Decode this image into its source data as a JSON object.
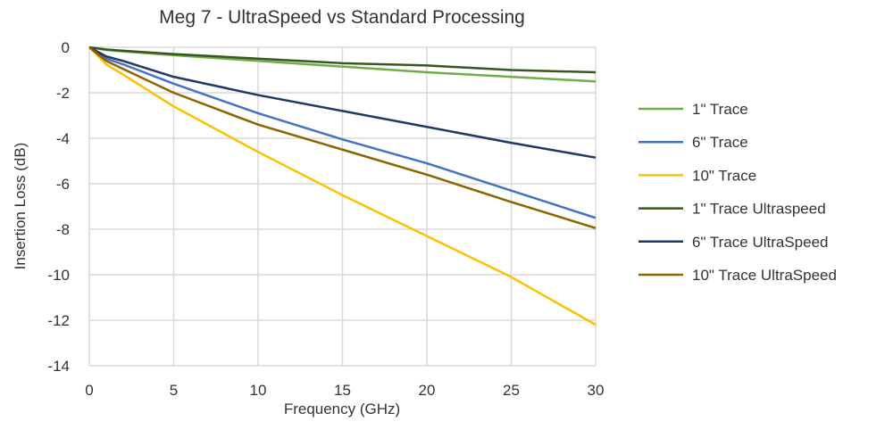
{
  "chart_data": {
    "type": "line",
    "title": "Meg 7 - UltraSpeed vs Standard Processing",
    "xlabel": "Frequency (GHz)",
    "ylabel": "Insertion Loss (dB)",
    "xlim": [
      0,
      30
    ],
    "ylim": [
      -14,
      0
    ],
    "xticks": [
      0,
      5,
      10,
      15,
      20,
      25,
      30
    ],
    "yticks": [
      0,
      -2,
      -4,
      -6,
      -8,
      -10,
      -12,
      -14
    ],
    "grid": true,
    "legend": "right",
    "x": [
      0,
      1,
      2,
      5,
      10,
      15,
      20,
      25,
      30
    ],
    "series": [
      {
        "name": "1\" Trace",
        "color": "#70AD47",
        "values": [
          0,
          -0.12,
          -0.18,
          -0.35,
          -0.6,
          -0.85,
          -1.1,
          -1.3,
          -1.5
        ]
      },
      {
        "name": "6\" Trace",
        "color": "#4472C4",
        "values": [
          0,
          -0.5,
          -0.75,
          -1.6,
          -2.9,
          -4.05,
          -5.1,
          -6.3,
          -7.5
        ]
      },
      {
        "name": "10\" Trace",
        "color": "#FFC000",
        "values": [
          0,
          -0.75,
          -1.2,
          -2.6,
          -4.6,
          -6.5,
          -8.3,
          -10.1,
          -12.2
        ]
      },
      {
        "name": "1\" Trace Ultraspeed",
        "color": "#375623",
        "values": [
          0,
          -0.1,
          -0.15,
          -0.3,
          -0.5,
          -0.7,
          -0.8,
          -1.0,
          -1.1
        ]
      },
      {
        "name": "6\" Trace UltraSpeed",
        "color": "#203864",
        "values": [
          0,
          -0.4,
          -0.6,
          -1.3,
          -2.1,
          -2.8,
          -3.5,
          -4.2,
          -4.85
        ]
      },
      {
        "name": "10\" Trace UltraSpeed",
        "color": "#8C6400",
        "values": [
          0,
          -0.6,
          -0.95,
          -2.0,
          -3.4,
          -4.5,
          -5.6,
          -6.8,
          -7.95
        ]
      }
    ]
  }
}
